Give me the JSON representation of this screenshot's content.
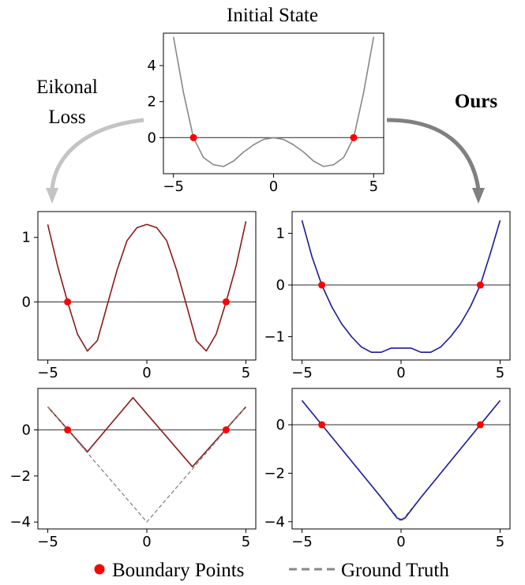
{
  "figure": {
    "title": "Initial State",
    "left_label_lines": [
      "Eikonal",
      "Loss"
    ],
    "right_label": "Ours",
    "legend": [
      {
        "name": "Boundary Points",
        "marker": "dot",
        "color": "#ff0000"
      },
      {
        "name": "Ground Truth",
        "marker": "dashed-line",
        "color": "#888888"
      }
    ]
  },
  "colors": {
    "initial": "#888888",
    "eikonal": "#8b1a1a",
    "ours": "#1a1a9e",
    "points": "#ff0000",
    "zero_line": "#555555",
    "arrow_left": "#c4c4c4",
    "arrow_right": "#808080"
  },
  "chart_data": [
    {
      "id": "initial",
      "type": "line",
      "title": "Initial State",
      "xlim": [
        -5.5,
        5.5
      ],
      "ylim": [
        -2.0,
        5.8
      ],
      "xticks": [
        -5,
        0,
        5
      ],
      "yticks": [
        0,
        2,
        4
      ],
      "series": [
        {
          "color": "#888888",
          "x": [
            -5,
            -4.5,
            -4,
            -3.5,
            -3,
            -2.5,
            -2,
            -1.5,
            -1,
            -0.5,
            0,
            0.5,
            1,
            1.5,
            2,
            2.5,
            3,
            3.5,
            4,
            4.5,
            5
          ],
          "y": [
            5.6,
            2.5,
            0.0,
            -1.1,
            -1.5,
            -1.6,
            -1.3,
            -0.8,
            -0.4,
            -0.1,
            0.0,
            -0.1,
            -0.4,
            -0.8,
            -1.3,
            -1.6,
            -1.5,
            -1.1,
            0.0,
            2.5,
            5.6
          ]
        }
      ],
      "boundary_points": {
        "x": [
          -4,
          4
        ],
        "y": [
          0,
          0
        ]
      }
    },
    {
      "id": "eikonal-top",
      "type": "line",
      "xlim": [
        -5.5,
        5.5
      ],
      "ylim": [
        -0.9,
        1.4
      ],
      "xticks": [
        -5,
        0,
        5
      ],
      "yticks": [
        0,
        1
      ],
      "series": [
        {
          "color": "#8b1a1a",
          "x": [
            -5,
            -4.5,
            -4,
            -3.5,
            -3,
            -2.5,
            -2,
            -1.5,
            -1,
            -0.5,
            0,
            0.5,
            1,
            1.5,
            2,
            2.5,
            3,
            3.5,
            4,
            4.5,
            5
          ],
          "y": [
            1.2,
            0.55,
            0.0,
            -0.5,
            -0.76,
            -0.6,
            -0.05,
            0.5,
            0.95,
            1.15,
            1.2,
            1.15,
            0.95,
            0.5,
            -0.05,
            -0.6,
            -0.76,
            -0.5,
            0.0,
            0.55,
            1.25
          ]
        }
      ],
      "boundary_points": {
        "x": [
          -4,
          4
        ],
        "y": [
          0,
          0
        ]
      }
    },
    {
      "id": "ours-top",
      "type": "line",
      "xlim": [
        -5.5,
        5.5
      ],
      "ylim": [
        -1.45,
        1.42
      ],
      "xticks": [
        -5,
        0,
        5
      ],
      "yticks": [
        -1,
        0,
        1
      ],
      "series": [
        {
          "color": "#1a1a9e",
          "x": [
            -5,
            -4.5,
            -4,
            -3.5,
            -3,
            -2.5,
            -2,
            -1.5,
            -1,
            -0.5,
            0,
            0.5,
            1,
            1.5,
            2,
            2.5,
            3,
            3.5,
            4,
            4.5,
            5
          ],
          "y": [
            1.25,
            0.55,
            0.0,
            -0.42,
            -0.75,
            -1.0,
            -1.2,
            -1.3,
            -1.3,
            -1.22,
            -1.22,
            -1.22,
            -1.3,
            -1.3,
            -1.2,
            -1.0,
            -0.75,
            -0.42,
            0.0,
            0.6,
            1.25
          ]
        }
      ],
      "boundary_points": {
        "x": [
          -4,
          4
        ],
        "y": [
          0,
          0
        ]
      }
    },
    {
      "id": "eikonal-bottom",
      "type": "line",
      "xlim": [
        -5.5,
        5.5
      ],
      "ylim": [
        -4.3,
        1.8
      ],
      "xticks": [
        -5,
        0,
        5
      ],
      "yticks": [
        -4,
        -2,
        0
      ],
      "series": [
        {
          "color": "#8b1a1a",
          "x": [
            -5,
            -3,
            -0.7,
            2.3,
            5
          ],
          "y": [
            1.0,
            -0.95,
            1.4,
            -1.6,
            1.0
          ]
        },
        {
          "name": "Ground Truth",
          "color": "#888888",
          "dashed": true,
          "x": [
            -5,
            0,
            5
          ],
          "y": [
            1.0,
            -4.0,
            1.0
          ]
        }
      ],
      "boundary_points": {
        "x": [
          -4,
          4
        ],
        "y": [
          0,
          0
        ]
      }
    },
    {
      "id": "ours-bottom",
      "type": "line",
      "xlim": [
        -5.5,
        5.5
      ],
      "ylim": [
        -4.3,
        1.5
      ],
      "xticks": [
        -5,
        0,
        5
      ],
      "yticks": [
        -4,
        -2,
        0
      ],
      "series": [
        {
          "name": "Ground Truth",
          "color": "#888888",
          "dashed": true,
          "x": [
            -5,
            0,
            5
          ],
          "y": [
            1.0,
            -4.0,
            1.0
          ]
        },
        {
          "color": "#1a1a9e",
          "x": [
            -5,
            -4,
            -1,
            -0.2,
            0,
            0.2,
            1,
            4,
            5
          ],
          "y": [
            1.0,
            0.0,
            -3.0,
            -3.85,
            -3.92,
            -3.85,
            -3.0,
            0.0,
            1.0
          ]
        }
      ],
      "boundary_points": {
        "x": [
          -4,
          4
        ],
        "y": [
          0,
          0
        ]
      }
    }
  ]
}
